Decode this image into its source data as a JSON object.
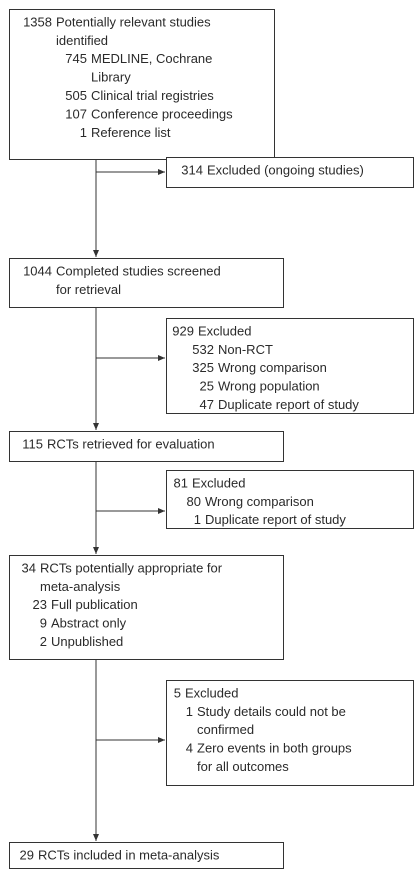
{
  "main_boxes": [
    {
      "count": "1358",
      "text": [
        "Potentially relevant studies",
        "identified"
      ],
      "items": [
        {
          "count": "745",
          "text": [
            "MEDLINE, Cochrane",
            "Library"
          ]
        },
        {
          "count": "505",
          "text": [
            "Clinical trial registries"
          ]
        },
        {
          "count": "107",
          "text": [
            "Conference proceedings"
          ]
        },
        {
          "count": "1",
          "text": [
            "Reference list"
          ]
        }
      ]
    },
    {
      "count": "1044",
      "text": [
        "Completed studies screened",
        "for retrieval"
      ],
      "items": []
    },
    {
      "count": "115",
      "text": [
        "RCTs retrieved for evaluation"
      ],
      "items": []
    },
    {
      "count": "34",
      "text": [
        "RCTs potentially appropriate for",
        "meta-analysis"
      ],
      "items": [
        {
          "count": "23",
          "text": [
            "Full publication"
          ]
        },
        {
          "count": "9",
          "text": [
            "Abstract only"
          ]
        },
        {
          "count": "2",
          "text": [
            "Unpublished"
          ]
        }
      ]
    },
    {
      "count": "29",
      "text": [
        "RCTs included in meta-analysis"
      ],
      "items": []
    }
  ],
  "excluded_boxes": [
    {
      "count": "314",
      "text": [
        "Excluded (ongoing studies)"
      ],
      "items": []
    },
    {
      "count": "929",
      "text": [
        "Excluded"
      ],
      "items": [
        {
          "count": "532",
          "text": [
            "Non-RCT"
          ]
        },
        {
          "count": "325",
          "text": [
            "Wrong comparison"
          ]
        },
        {
          "count": "25",
          "text": [
            "Wrong population"
          ]
        },
        {
          "count": "47",
          "text": [
            "Duplicate report of study"
          ]
        }
      ]
    },
    {
      "count": "81",
      "text": [
        "Excluded"
      ],
      "items": [
        {
          "count": "80",
          "text": [
            "Wrong comparison"
          ]
        },
        {
          "count": "1",
          "text": [
            "Duplicate report of study"
          ]
        }
      ]
    },
    {
      "count": "5",
      "text": [
        "Excluded"
      ],
      "items": [
        {
          "count": "1",
          "text": [
            "Study details could not be",
            "confirmed"
          ]
        },
        {
          "count": "4",
          "text": [
            "Zero events in both groups",
            "for all outcomes"
          ]
        }
      ]
    }
  ]
}
